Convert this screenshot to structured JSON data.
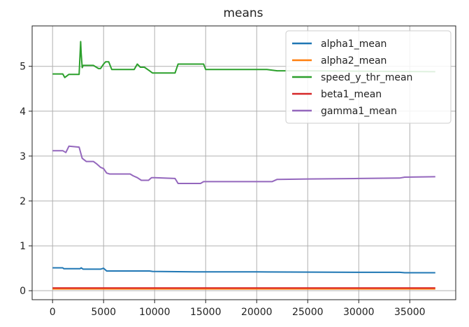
{
  "chart_data": {
    "type": "line",
    "title": "means",
    "xlabel": "",
    "ylabel": "",
    "xlim": [
      -2000,
      39500
    ],
    "ylim": [
      -0.2,
      5.9
    ],
    "xticks": [
      0,
      5000,
      10000,
      15000,
      20000,
      25000,
      30000,
      35000
    ],
    "xtick_labels": [
      "0",
      "5000",
      "10000",
      "15000",
      "20000",
      "25000",
      "30000",
      "35000"
    ],
    "yticks": [
      0,
      1,
      2,
      3,
      4,
      5
    ],
    "ytick_labels": [
      "0",
      "1",
      "2",
      "3",
      "4",
      "5"
    ],
    "grid": true,
    "legend_placement": "top-right",
    "series": [
      {
        "name": "alpha1_mean",
        "color": "#1f77b4",
        "x": [
          0,
          1000,
          1100,
          2700,
          2800,
          3000,
          4700,
          5000,
          5300,
          9500,
          9800,
          14000,
          20000,
          30000,
          34000,
          34500,
          37500
        ],
        "y": [
          0.51,
          0.51,
          0.49,
          0.49,
          0.51,
          0.48,
          0.48,
          0.5,
          0.44,
          0.44,
          0.43,
          0.42,
          0.42,
          0.41,
          0.41,
          0.4,
          0.4
        ]
      },
      {
        "name": "alpha2_mean",
        "color": "#ff7f0e",
        "x": [
          0,
          37500
        ],
        "y": [
          0.04,
          0.04
        ]
      },
      {
        "name": "speed_y_thr_mean",
        "color": "#2ca02c",
        "x": [
          0,
          1000,
          1200,
          1600,
          2600,
          2750,
          2800,
          2900,
          3000,
          3200,
          4000,
          4500,
          4700,
          5000,
          5200,
          5500,
          5800,
          8000,
          8300,
          8600,
          9000,
          9500,
          9800,
          12000,
          12300,
          14800,
          15000,
          21000,
          22000,
          25000,
          37500
        ],
        "y": [
          4.83,
          4.83,
          4.75,
          4.82,
          4.82,
          5.55,
          5.3,
          4.97,
          5.02,
          5.02,
          5.02,
          4.95,
          4.95,
          5.05,
          5.1,
          5.1,
          4.93,
          4.93,
          5.05,
          4.98,
          4.98,
          4.9,
          4.85,
          4.85,
          5.05,
          5.05,
          4.93,
          4.93,
          4.9,
          4.9,
          4.88
        ]
      },
      {
        "name": "beta1_mean",
        "color": "#d62728",
        "x": [
          0,
          37500
        ],
        "y": [
          0.06,
          0.06
        ]
      },
      {
        "name": "gamma1_mean",
        "color": "#9467bd",
        "x": [
          0,
          1000,
          1300,
          1600,
          2600,
          2900,
          3300,
          4000,
          4300,
          4700,
          5000,
          5300,
          5600,
          7600,
          7900,
          8300,
          8700,
          9400,
          9700,
          10000,
          12000,
          12300,
          14500,
          14800,
          21500,
          22000,
          25000,
          30000,
          34000,
          34500,
          37500
        ],
        "y": [
          3.12,
          3.12,
          3.08,
          3.22,
          3.2,
          2.95,
          2.88,
          2.88,
          2.83,
          2.75,
          2.72,
          2.62,
          2.6,
          2.6,
          2.56,
          2.52,
          2.46,
          2.46,
          2.52,
          2.52,
          2.5,
          2.39,
          2.39,
          2.43,
          2.43,
          2.48,
          2.49,
          2.5,
          2.51,
          2.53,
          2.54
        ]
      }
    ]
  }
}
